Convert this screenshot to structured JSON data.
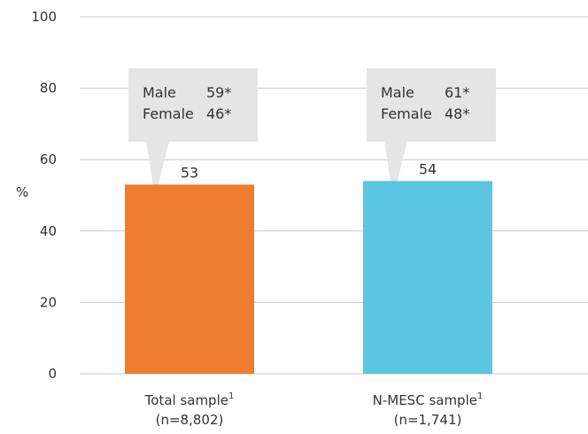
{
  "chart_data": {
    "type": "bar",
    "ylabel": "%",
    "ylim": [
      0,
      100
    ],
    "yticks": [
      0,
      20,
      40,
      60,
      80,
      100
    ],
    "grid": true,
    "categories": [
      {
        "name": "Total sample",
        "footnote": "1",
        "n": "(n=8,802)"
      },
      {
        "name": "N-MESC sample",
        "footnote": "1",
        "n": "(n=1,741)"
      }
    ],
    "values": [
      53,
      54
    ],
    "colors": [
      "#ED7D31",
      "#5BC5E2"
    ],
    "annotations": [
      {
        "rows": [
          {
            "label": "Male",
            "value": "59*"
          },
          {
            "label": "Female",
            "value": "46*"
          }
        ]
      },
      {
        "rows": [
          {
            "label": "Male",
            "value": "61*"
          },
          {
            "label": "Female",
            "value": "48*"
          }
        ]
      }
    ]
  }
}
